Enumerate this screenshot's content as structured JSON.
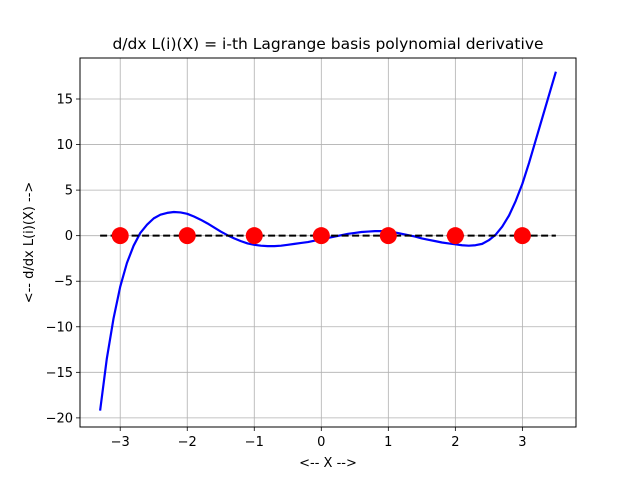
{
  "chart_data": {
    "type": "line",
    "title": "d/dx L(i)(X) = i-th Lagrange basis polynomial derivative",
    "xlabel": "<-- X -->",
    "ylabel": "<-- d/dx L(i)(X) -->",
    "xlim": [
      -3.6,
      3.8
    ],
    "ylim": [
      -21,
      19.5
    ],
    "xticks": [
      -3,
      -2,
      -1,
      0,
      1,
      2,
      3
    ],
    "xtick_labels": [
      "−3",
      "−2",
      "−1",
      "0",
      "1",
      "2",
      "3"
    ],
    "yticks": [
      -20,
      -15,
      -10,
      -5,
      0,
      5,
      10,
      15
    ],
    "ytick_labels": [
      "−20",
      "−15",
      "−10",
      "−5",
      "0",
      "5",
      "10",
      "15"
    ],
    "grid": true,
    "series": [
      {
        "style": "solid",
        "color": "#0000ff",
        "x": [
          -3.3,
          -3.2,
          -3.1,
          -3.0,
          -2.9,
          -2.8,
          -2.7,
          -2.6,
          -2.5,
          -2.4,
          -2.3,
          -2.2,
          -2.1,
          -2.0,
          -1.9,
          -1.8,
          -1.7,
          -1.6,
          -1.5,
          -1.4,
          -1.3,
          -1.2,
          -1.1,
          -1.0,
          -0.9,
          -0.8,
          -0.7,
          -0.6,
          -0.5,
          -0.4,
          -0.3,
          -0.2,
          -0.1,
          0.0,
          0.1,
          0.2,
          0.3,
          0.4,
          0.5,
          0.6,
          0.7,
          0.8,
          0.9,
          1.0,
          1.1,
          1.2,
          1.3,
          1.4,
          1.5,
          1.6,
          1.7,
          1.8,
          1.9,
          2.0,
          2.1,
          2.2,
          2.3,
          2.4,
          2.5,
          2.6,
          2.7,
          2.8,
          2.9,
          3.0,
          3.1,
          3.2,
          3.3,
          3.4,
          3.5
        ],
        "y": [
          -19.2,
          -13.5,
          -9.1,
          -5.6,
          -3.0,
          -1.1,
          0.3,
          1.2,
          1.9,
          2.3,
          2.5,
          2.6,
          2.55,
          2.4,
          2.1,
          1.75,
          1.35,
          0.9,
          0.45,
          0.05,
          -0.3,
          -0.6,
          -0.85,
          -1.0,
          -1.1,
          -1.15,
          -1.15,
          -1.1,
          -1.0,
          -0.9,
          -0.8,
          -0.7,
          -0.55,
          -0.4,
          -0.25,
          -0.1,
          0.05,
          0.2,
          0.3,
          0.4,
          0.45,
          0.5,
          0.5,
          0.45,
          0.35,
          0.2,
          0.05,
          -0.1,
          -0.3,
          -0.45,
          -0.6,
          -0.75,
          -0.85,
          -0.95,
          -1.05,
          -1.1,
          -1.05,
          -0.9,
          -0.5,
          0.1,
          1.0,
          2.2,
          3.8,
          5.7,
          8.0,
          10.5,
          13.0,
          15.5,
          18.0
        ]
      },
      {
        "style": "dashed",
        "color": "#000000",
        "x": [
          -3.3,
          3.5
        ],
        "y": [
          0,
          0
        ]
      },
      {
        "style": "markers",
        "color": "#ff0000",
        "x": [
          -3,
          -2,
          -1,
          0,
          1,
          2,
          3
        ],
        "y": [
          0,
          0,
          0,
          0,
          0,
          0,
          0
        ]
      }
    ]
  }
}
